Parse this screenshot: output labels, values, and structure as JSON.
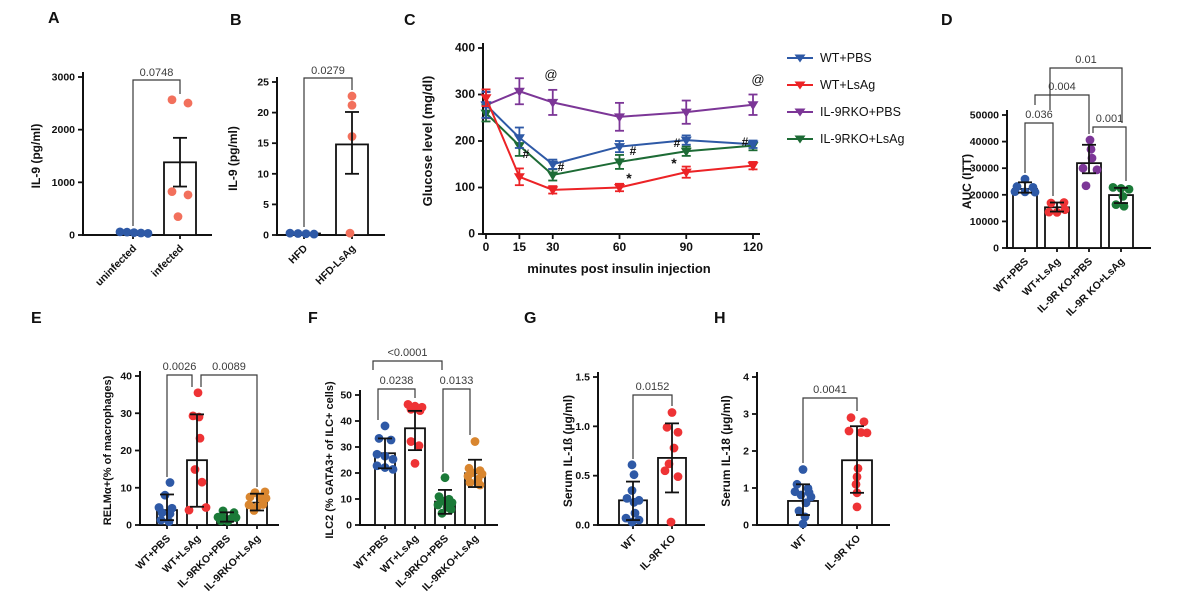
{
  "figure": {
    "background": "#ffffff",
    "text_color": "#111111",
    "pvalue_color": "#3a3a3a"
  },
  "chart_data": [
    {
      "panel": "A",
      "type": "scatter_bar",
      "ylabel": "IL-9 (pg/ml)",
      "ylim": [
        0,
        3000
      ],
      "yticks": [
        "0",
        "1000",
        "2000",
        "3000"
      ],
      "groups": [
        {
          "label": "uninfected",
          "color": "#2E59A6",
          "mean": 45,
          "whisker_low": null,
          "whisker_high": null,
          "points": [
            60,
            55,
            45,
            38,
            30
          ]
        },
        {
          "label": "infected",
          "color": "#F2705C",
          "mean": 1380,
          "whisker_low": 920,
          "whisker_high": 1845,
          "points": [
            2568,
            2505,
            824,
            761,
            349
          ]
        }
      ],
      "sig": [
        {
          "groups": [
            0,
            1
          ],
          "label": "0.0748"
        }
      ]
    },
    {
      "panel": "B",
      "type": "scatter_bar",
      "ylabel": "IL-9 (pg/ml)",
      "ylim": [
        0,
        25
      ],
      "yticks": [
        "0",
        "5",
        "10",
        "15",
        "20",
        "25"
      ],
      "groups": [
        {
          "label": "HFD",
          "color": "#2E59A6",
          "mean": 0.25,
          "whisker_low": null,
          "whisker_high": null,
          "points": [
            0.3,
            0.25,
            0.2,
            0.15
          ]
        },
        {
          "label": "HFD-LsAg",
          "color": "#F2705C",
          "mean": 14.8,
          "whisker_low": 10.0,
          "whisker_high": 20.1,
          "points": [
            22.7,
            21.2,
            16.1,
            0.3
          ]
        }
      ],
      "sig": [
        {
          "groups": [
            0,
            1
          ],
          "label": "0.0279"
        }
      ]
    },
    {
      "panel": "C",
      "type": "line",
      "ylabel": "Glucose level (mg/dl)",
      "xlabel": "minutes post insulin injection",
      "ylim": [
        0,
        400
      ],
      "yticks": [
        "0",
        "100",
        "200",
        "300",
        "400"
      ],
      "x": [
        0,
        15,
        30,
        60,
        90,
        120
      ],
      "xticks": [
        "0",
        "15",
        "30",
        "60",
        "90",
        "120"
      ],
      "series": [
        {
          "name": "WT+PBS",
          "color": "#2E59A6",
          "values": [
            278,
            207,
            150,
            188,
            202,
            193
          ],
          "errors": [
            28,
            22,
            10,
            12,
            10,
            8
          ]
        },
        {
          "name": "WT+LsAg",
          "color": "#EC2326",
          "values": [
            293,
            123,
            95,
            100,
            133,
            147
          ],
          "errors": [
            18,
            18,
            8,
            8,
            12,
            8
          ]
        },
        {
          "name": "IL-9RKO+PBS",
          "color": "#7C3697",
          "values": [
            277,
            307,
            283,
            252,
            262,
            278
          ],
          "errors": [
            28,
            28,
            27,
            30,
            25,
            22
          ]
        },
        {
          "name": "IL-9RKO+LsAg",
          "color": "#1D6B35",
          "values": [
            260,
            190,
            127,
            155,
            178,
            190
          ],
          "errors": [
            18,
            22,
            12,
            15,
            10,
            10
          ]
        }
      ],
      "annotations": [
        {
          "text": "@",
          "x": 30,
          "series": "IL-9RKO+PBS"
        },
        {
          "text": "@",
          "x": 120,
          "series": "IL-9RKO+PBS"
        },
        {
          "text": "#",
          "x": 15,
          "series": "IL-9RKO+LsAg"
        },
        {
          "text": "#",
          "x": 30,
          "series": "IL-9RKO+LsAg"
        },
        {
          "text": "#",
          "x": 60,
          "series": "IL-9RKO+LsAg"
        },
        {
          "text": "#",
          "x": 90,
          "series": "IL-9RKO+LsAg"
        },
        {
          "text": "#",
          "x": 120,
          "series": "IL-9RKO+LsAg"
        },
        {
          "text": "*",
          "x": 60,
          "series": "WT+LsAg"
        },
        {
          "text": "*",
          "x": 90,
          "series": "WT+LsAg"
        }
      ]
    },
    {
      "panel": "D",
      "type": "scatter_bar",
      "ylabel": "AUC  (ITT)",
      "ylim": [
        0,
        50000
      ],
      "yticks": [
        "0",
        "10000",
        "20000",
        "30000",
        "40000",
        "50000"
      ],
      "groups": [
        {
          "label": "WT+PBS",
          "color": "#2E59A6",
          "mean": 22200,
          "whisker_low": 20800,
          "whisker_high": 24700,
          "points": [
            25900,
            23100,
            22800,
            21200,
            21100,
            21000
          ]
        },
        {
          "label": "WT+LsAg",
          "color": "#EE3335",
          "mean": 15300,
          "whisker_low": 13700,
          "whisker_high": 17100,
          "points": [
            17100,
            16900,
            14400,
            13500,
            13400
          ]
        },
        {
          "label": "IL-9R KO+PBS",
          "color": "#7C3697",
          "mean": 31900,
          "whisker_low": 28100,
          "whisker_high": 38800,
          "points": [
            40600,
            37100,
            33800,
            30000,
            29400,
            23400
          ]
        },
        {
          "label": "IL-9R KO+LsAg",
          "color": "#1B7A38",
          "mean": 19900,
          "whisker_low": 16900,
          "whisker_high": 22600,
          "points": [
            22800,
            22400,
            22100,
            19400,
            16300,
            15700
          ]
        }
      ],
      "sig": [
        {
          "groups": [
            0,
            1
          ],
          "label": "0.036"
        },
        {
          "groups": [
            0,
            2
          ],
          "label": "0.004"
        },
        {
          "groups": [
            1,
            3
          ],
          "label": "0.01"
        },
        {
          "groups": [
            2,
            3
          ],
          "label": "0.001"
        }
      ]
    },
    {
      "panel": "E",
      "type": "scatter_bar",
      "ylabel": "RELMα+(% of macrophages)",
      "ylim": [
        0,
        40
      ],
      "yticks": [
        "0",
        "10",
        "20",
        "30",
        "40"
      ],
      "groups": [
        {
          "label": "WT+PBS",
          "color": "#2E59A6",
          "mean": 4.0,
          "whisker_low": 1.3,
          "whisker_high": 8.2,
          "points": [
            11.4,
            8.0,
            4.7,
            4.5,
            3.3,
            3.0,
            1.3,
            0.9
          ]
        },
        {
          "label": "WT+LsAg",
          "color": "#EE3335",
          "mean": 17.4,
          "whisker_low": 4.9,
          "whisker_high": 29.7,
          "points": [
            35.5,
            29.3,
            29.0,
            23.3,
            14.9,
            11.5,
            4.7,
            4.0
          ]
        },
        {
          "label": "IL-9RKO+PBS",
          "color": "#1B7A38",
          "mean": 2.0,
          "whisker_low": 0.9,
          "whisker_high": 3.4,
          "points": [
            3.8,
            3.3,
            2.1,
            2.0,
            1.8,
            1.7,
            1.1,
            1.0
          ]
        },
        {
          "label": "IL-9RKO+LsAg",
          "color": "#D9862F",
          "mean": 6.0,
          "whisker_low": 3.9,
          "whisker_high": 8.4,
          "points": [
            8.9,
            8.7,
            7.5,
            7.3,
            7.2,
            5.5,
            5.4,
            4.9,
            3.9
          ]
        }
      ],
      "sig": [
        {
          "groups": [
            0,
            1
          ],
          "label": "0.0026"
        },
        {
          "groups": [
            1,
            3
          ],
          "label": "0.0089"
        }
      ]
    },
    {
      "panel": "F",
      "type": "scatter_bar",
      "ylabel": "ILC2  (% GATA3+ of ILC+ cells)",
      "ylim": [
        0,
        50
      ],
      "yticks": [
        "0",
        "10",
        "20",
        "30",
        "40",
        "50"
      ],
      "groups": [
        {
          "label": "WT+PBS",
          "color": "#2E59A6",
          "mean": 27.6,
          "whisker_low": 21.8,
          "whisker_high": 33.3,
          "points": [
            38.1,
            33.3,
            32.7,
            27.2,
            26.5,
            25.3,
            22.8,
            22.1,
            21.4
          ]
        },
        {
          "label": "WT+LsAg",
          "color": "#EE3335",
          "mean": 37.2,
          "whisker_low": 28.8,
          "whisker_high": 43.9,
          "points": [
            46.4,
            45.7,
            45.3,
            44.5,
            44.0,
            32.1,
            30.5,
            23.7
          ]
        },
        {
          "label": "IL-9RKO+PBS",
          "color": "#1B7A38",
          "mean": 9.0,
          "whisker_low": 4.3,
          "whisker_high": 13.5,
          "points": [
            18.2,
            10.9,
            9.9,
            9.2,
            8.6,
            7.7,
            6.8,
            6.0,
            4.5
          ]
        },
        {
          "label": "IL-9RKO+LsAg",
          "color": "#D9862F",
          "mean": 19.9,
          "whisker_low": 14.6,
          "whisker_high": 25.1,
          "points": [
            32.1,
            21.8,
            20.9,
            20.1,
            19.6,
            18.8,
            17.6,
            16.3,
            15.4
          ]
        }
      ],
      "sig": [
        {
          "groups": [
            0,
            2
          ],
          "label": "<0.0001"
        },
        {
          "groups": [
            0,
            1
          ],
          "label": "0.0238"
        },
        {
          "groups": [
            2,
            3
          ],
          "label": "0.0133"
        }
      ]
    },
    {
      "panel": "G",
      "type": "scatter_bar",
      "ylabel": "Serum IL-1ß (µg/ml)",
      "ylim": [
        0,
        1.5
      ],
      "yticks": [
        "0.0",
        "0.5",
        "1.0",
        "1.5"
      ],
      "groups": [
        {
          "label": "WT",
          "color": "#2E59A6",
          "mean": 0.25,
          "whisker_low": 0.05,
          "whisker_high": 0.44,
          "points": [
            0.61,
            0.51,
            0.35,
            0.27,
            0.25,
            0.23,
            0.12,
            0.07,
            0.05,
            0.03
          ]
        },
        {
          "label": "IL-9R KO",
          "color": "#EE3335",
          "mean": 0.68,
          "whisker_low": 0.33,
          "whisker_high": 1.03,
          "points": [
            1.14,
            0.99,
            0.94,
            0.78,
            0.62,
            0.55,
            0.49,
            0.03
          ]
        }
      ],
      "sig": [
        {
          "groups": [
            0,
            1
          ],
          "label": "0.0152"
        }
      ]
    },
    {
      "panel": "H",
      "type": "scatter_bar",
      "ylabel": "Serum IL-18 (µg/ml)",
      "ylim": [
        0,
        4
      ],
      "yticks": [
        "0",
        "1",
        "2",
        "3",
        "4"
      ],
      "groups": [
        {
          "label": "WT",
          "color": "#2E59A6",
          "mean": 0.65,
          "whisker_low": 0.27,
          "whisker_high": 1.1,
          "points": [
            1.5,
            1.1,
            0.99,
            0.9,
            0.88,
            0.81,
            0.76,
            0.6,
            0.38,
            0.22,
            0.03
          ]
        },
        {
          "label": "IL-9R KO",
          "color": "#EE3335",
          "mean": 1.75,
          "whisker_low": 0.87,
          "whisker_high": 2.67,
          "points": [
            2.9,
            2.79,
            2.54,
            2.5,
            2.49,
            1.53,
            1.3,
            1.1,
            0.87,
            0.49
          ]
        }
      ],
      "sig": [
        {
          "groups": [
            0,
            1
          ],
          "label": "0.0041"
        }
      ]
    }
  ]
}
